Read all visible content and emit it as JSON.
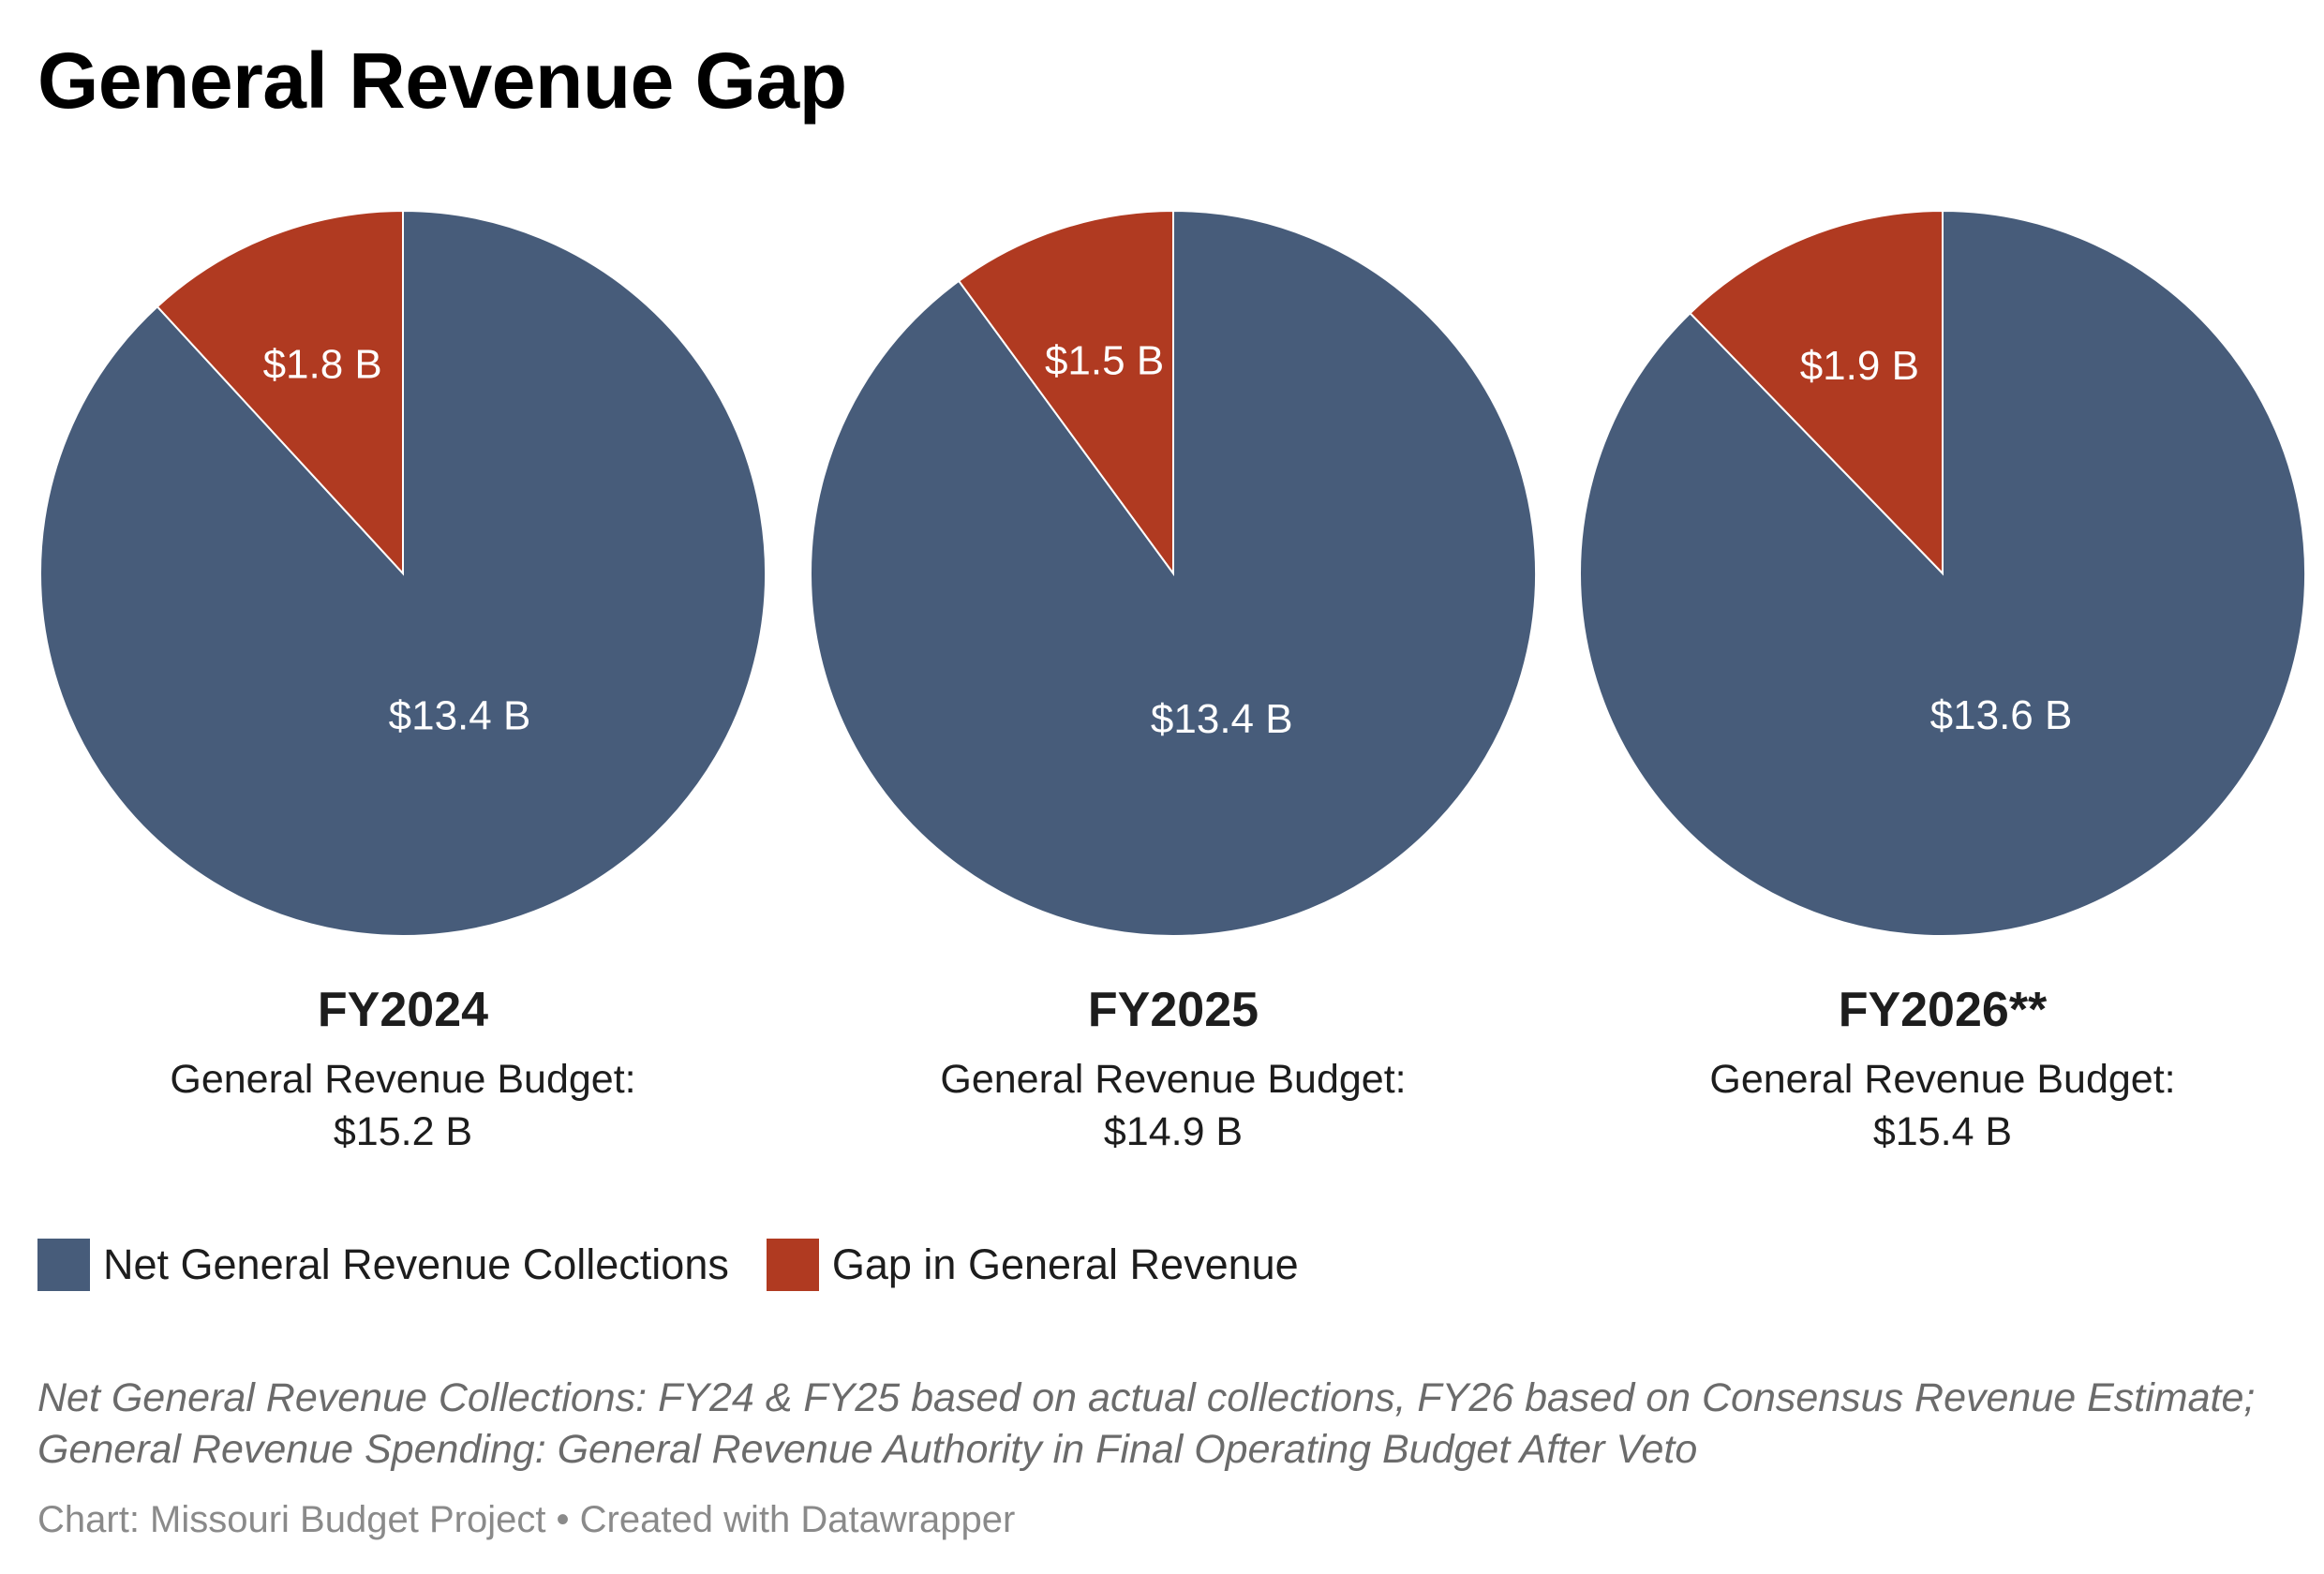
{
  "title": "General Revenue Gap",
  "colors": {
    "collections": "#475c7a",
    "gap": "#b03a21",
    "separator": "#ffffff"
  },
  "chart_data": [
    {
      "type": "pie",
      "label": "FY2024",
      "budget_label": "General Revenue Budget:",
      "budget_value": "$15.2 B",
      "slices": [
        {
          "name": "Net General Revenue Collections",
          "value": 13.4,
          "label": "$13.4 B"
        },
        {
          "name": "Gap in General Revenue",
          "value": 1.8,
          "label": "$1.8 B"
        }
      ]
    },
    {
      "type": "pie",
      "label": "FY2025",
      "budget_label": "General Revenue Budget:",
      "budget_value": "$14.9 B",
      "slices": [
        {
          "name": "Net General Revenue Collections",
          "value": 13.4,
          "label": "$13.4 B"
        },
        {
          "name": "Gap in General Revenue",
          "value": 1.5,
          "label": "$1.5 B"
        }
      ]
    },
    {
      "type": "pie",
      "label": "FY2026**",
      "budget_label": "General Revenue Budget:",
      "budget_value": "$15.4 B",
      "slices": [
        {
          "name": "Net General Revenue Collections",
          "value": 13.6,
          "label": "$13.6 B"
        },
        {
          "name": "Gap in General Revenue",
          "value": 1.9,
          "label": "$1.9 B"
        }
      ]
    }
  ],
  "legend": [
    {
      "label": "Net General Revenue Collections",
      "color": "#475c7a"
    },
    {
      "label": "Gap in General Revenue",
      "color": "#b03a21"
    }
  ],
  "notes": "Net General Revenue Collections: FY24 & FY25 based on actual collections, FY26 based on Consensus Revenue Estimate; General Revenue Spending: General Revenue Authority in Final Operating Budget After Veto",
  "source": "Chart: Missouri Budget Project • Created with Datawrapper"
}
